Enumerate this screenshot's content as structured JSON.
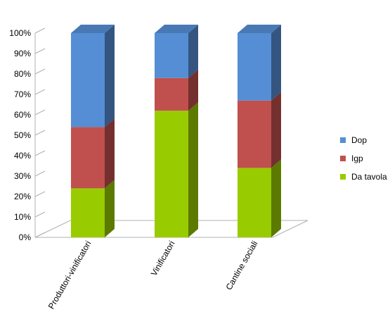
{
  "chart_data": {
    "type": "bar",
    "stacked": true,
    "percent": true,
    "three_d": true,
    "categories": [
      "Produttori-vinificatori",
      "Vinificatori",
      "Cantine sociali"
    ],
    "series": [
      {
        "name": "Da tavola",
        "values": [
          24,
          62,
          34
        ],
        "color": "#99cc00"
      },
      {
        "name": "Igp",
        "values": [
          30,
          16,
          33
        ],
        "color": "#c0504d"
      },
      {
        "name": "Dop",
        "values": [
          46,
          22,
          33
        ],
        "color": "#558ed5"
      }
    ],
    "y_ticks": [
      "0%",
      "10%",
      "20%",
      "30%",
      "40%",
      "50%",
      "60%",
      "70%",
      "80%",
      "90%",
      "100%"
    ],
    "ylim": [
      0,
      100
    ],
    "legend_order": [
      "Dop",
      "Igp",
      "Da tavola"
    ],
    "legend_position": "right",
    "grid": false
  }
}
